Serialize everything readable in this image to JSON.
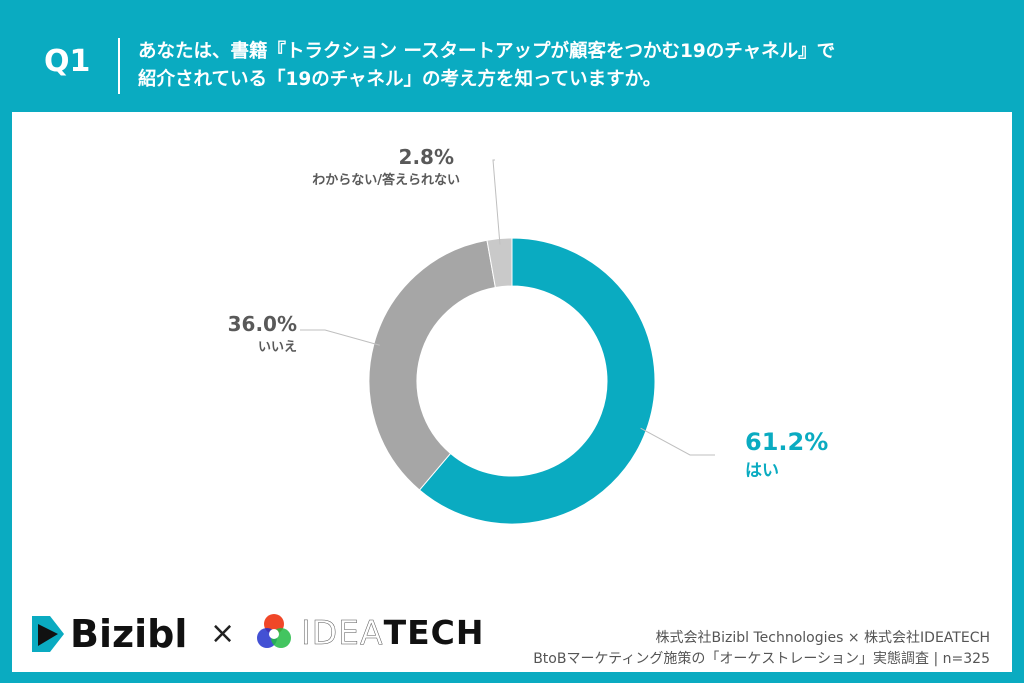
{
  "header": {
    "question_id": "Q1",
    "question": [
      "あなたは、書籍『トラクション ースタートアップが顧客をつかむ19のチャネル』で",
      "紹介されている「19のチャネル」の考え方を知っていますか。"
    ]
  },
  "chart_data": {
    "type": "pie",
    "donut": true,
    "start": "top, clockwise",
    "slices": [
      {
        "label": "はい",
        "value": 61.2,
        "value_label": "61.2%",
        "color": "#0aabc1"
      },
      {
        "label": "いいえ",
        "value": 36.0,
        "value_label": "36.0%",
        "color": "#a6a6a6"
      },
      {
        "label": "わからない/答えられない",
        "value": 2.8,
        "value_label": "2.8%",
        "color": "#c9c9c9"
      }
    ]
  },
  "footer": {
    "logo_left": "Bizibl",
    "times": "×",
    "logo_right": "IDEATECH",
    "logo_right_light": "IDEA",
    "logo_right_bold": "TECH",
    "credit": "株式会社Bizibl Technologies × 株式会社IDEATECH",
    "survey": "BtoBマーケティング施策の「オーケストレーション」実態調査 | n=325"
  }
}
